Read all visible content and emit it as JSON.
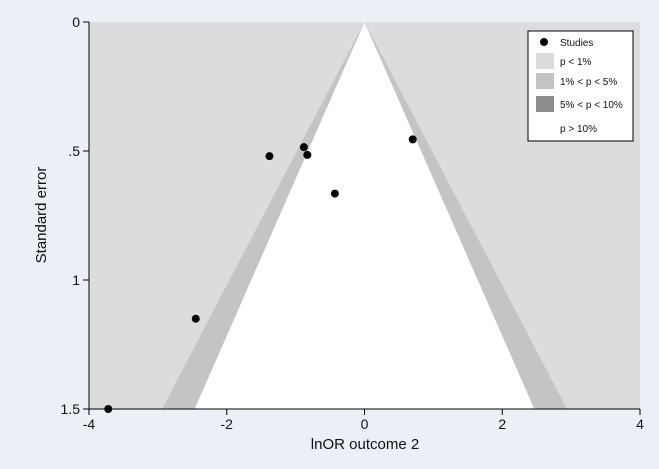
{
  "chart_data": {
    "type": "scatter",
    "title": "",
    "xlabel": "lnOR outcome 2",
    "ylabel": "Standard error",
    "xlim": [
      -4,
      4
    ],
    "ylim": [
      0,
      1.5
    ],
    "y_reversed": true,
    "x_ticks": [
      -4,
      -2,
      0,
      2,
      4
    ],
    "x_tick_labels": [
      "-4",
      "-2",
      "0",
      "2",
      "4"
    ],
    "y_ticks": [
      0,
      0.5,
      1,
      1.5
    ],
    "y_tick_labels": [
      "0",
      ".5",
      "1",
      "1.5"
    ],
    "grid": false,
    "legend_position": "top-right",
    "contour_center": 0,
    "contours": [
      {
        "label": "p < 1%",
        "z": 2.576,
        "color": "#dcdcdc"
      },
      {
        "label": "1% < p < 5%",
        "z": 1.96,
        "color": "#c4c4c4"
      },
      {
        "label": "5% < p < 10%",
        "z": 1.645,
        "color": "#8c8c8c"
      },
      {
        "label": "p > 10%",
        "color": "#ffffff"
      }
    ],
    "series": [
      {
        "name": "Studies",
        "color": "#000000",
        "points": [
          {
            "x": -3.72,
            "y": 1.5
          },
          {
            "x": -2.45,
            "y": 1.15
          },
          {
            "x": -1.38,
            "y": 0.52
          },
          {
            "x": -0.88,
            "y": 0.485
          },
          {
            "x": -0.83,
            "y": 0.515
          },
          {
            "x": -0.43,
            "y": 0.665
          },
          {
            "x": 0.7,
            "y": 0.455
          }
        ]
      }
    ],
    "colors": {
      "outer_background": "#eaf0f5",
      "plot_background": "#dcdcdc",
      "axis": "#000000"
    }
  }
}
